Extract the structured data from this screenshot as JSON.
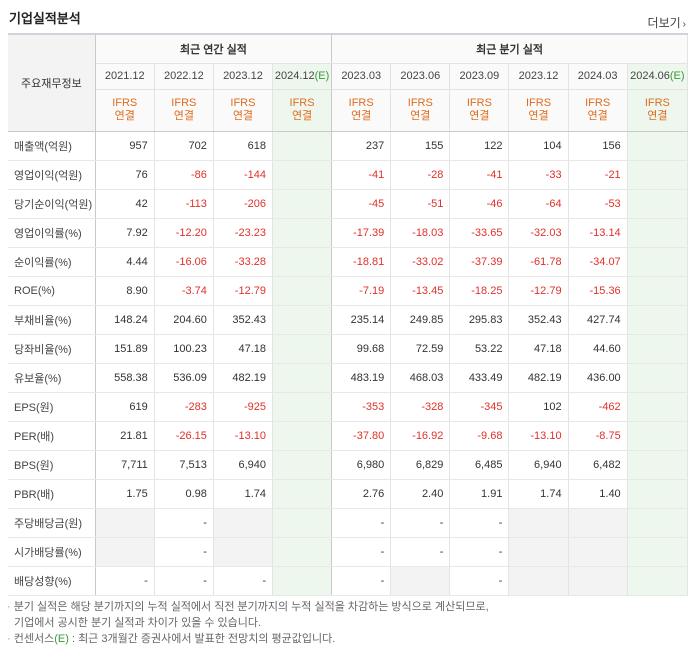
{
  "header": {
    "title": "기업실적분석",
    "more_label": "더보기",
    "more_icon": "chevron-right-icon"
  },
  "table": {
    "corner_label": "주요재무정보",
    "group_annual": "최근 연간 실적",
    "group_quarter": "최근 분기 실적",
    "periods": [
      "2021.12",
      "2022.12",
      "2023.12",
      "2024.12",
      "2023.03",
      "2023.06",
      "2023.09",
      "2023.12",
      "2024.03",
      "2024.06"
    ],
    "estimate_mark": "(E)",
    "basis_line1": "IFRS",
    "basis_line2": "연결",
    "rows": [
      {
        "label": "매출액(억원)",
        "values": [
          "957",
          "702",
          "618",
          "",
          "237",
          "155",
          "122",
          "104",
          "156",
          ""
        ]
      },
      {
        "label": "영업이익(억원)",
        "values": [
          "76",
          "-86",
          "-144",
          "",
          "-41",
          "-28",
          "-41",
          "-33",
          "-21",
          ""
        ]
      },
      {
        "label": "당기순이익(억원)",
        "values": [
          "42",
          "-113",
          "-206",
          "",
          "-45",
          "-51",
          "-46",
          "-64",
          "-53",
          ""
        ]
      },
      {
        "label": "영업이익률(%)",
        "values": [
          "7.92",
          "-12.20",
          "-23.23",
          "",
          "-17.39",
          "-18.03",
          "-33.65",
          "-32.03",
          "-13.14",
          ""
        ]
      },
      {
        "label": "순이익률(%)",
        "values": [
          "4.44",
          "-16.06",
          "-33.28",
          "",
          "-18.81",
          "-33.02",
          "-37.39",
          "-61.78",
          "-34.07",
          ""
        ]
      },
      {
        "label": "ROE(%)",
        "values": [
          "8.90",
          "-3.74",
          "-12.79",
          "",
          "-7.19",
          "-13.45",
          "-18.25",
          "-12.79",
          "-15.36",
          ""
        ]
      },
      {
        "label": "부채비율(%)",
        "values": [
          "148.24",
          "204.60",
          "352.43",
          "",
          "235.14",
          "249.85",
          "295.83",
          "352.43",
          "427.74",
          ""
        ]
      },
      {
        "label": "당좌비율(%)",
        "values": [
          "151.89",
          "100.23",
          "47.18",
          "",
          "99.68",
          "72.59",
          "53.22",
          "47.18",
          "44.60",
          ""
        ]
      },
      {
        "label": "유보율(%)",
        "values": [
          "558.38",
          "536.09",
          "482.19",
          "",
          "483.19",
          "468.03",
          "433.49",
          "482.19",
          "436.00",
          ""
        ]
      },
      {
        "label": "EPS(원)",
        "values": [
          "619",
          "-283",
          "-925",
          "",
          "-353",
          "-328",
          "-345",
          "102",
          "-462",
          ""
        ]
      },
      {
        "label": "PER(배)",
        "values": [
          "21.81",
          "-26.15",
          "-13.10",
          "",
          "-37.80",
          "-16.92",
          "-9.68",
          "-13.10",
          "-8.75",
          ""
        ]
      },
      {
        "label": "BPS(원)",
        "values": [
          "7,711",
          "7,513",
          "6,940",
          "",
          "6,980",
          "6,829",
          "6,485",
          "6,940",
          "6,482",
          ""
        ]
      },
      {
        "label": "PBR(배)",
        "values": [
          "1.75",
          "0.98",
          "1.74",
          "",
          "2.76",
          "2.40",
          "1.91",
          "1.74",
          "1.40",
          ""
        ]
      },
      {
        "label": "주당배당금(원)",
        "values": [
          "",
          "-",
          "",
          "",
          "-",
          "-",
          "-",
          "",
          "",
          ""
        ]
      },
      {
        "label": "시가배당률(%)",
        "values": [
          "",
          "-",
          "",
          "",
          "-",
          "-",
          "-",
          "",
          "",
          ""
        ]
      },
      {
        "label": "배당성향(%)",
        "values": [
          "-",
          "-",
          "-",
          "",
          "-",
          "",
          "-",
          "",
          "",
          ""
        ]
      }
    ]
  },
  "notes": {
    "line1": "분기 실적은 해당 분기까지의 누적 실적에서 직전 분기까지의 누적 실적을 차감하는 방식으로 계산되므로,",
    "line2": "기업에서 공시한 분기 실적과 차이가 있을 수 있습니다.",
    "line3_prefix": "컨센서스",
    "line3_mark": "(E)",
    "line3_rest": ": 최근 3개월간 증권사에서 발표한 전망치의 평균값입니다."
  },
  "colors": {
    "negative": "#e0312b",
    "basis": "#e06b1b",
    "estimate": "#3a9a3a",
    "estimate_bg": "#eef7ee"
  }
}
